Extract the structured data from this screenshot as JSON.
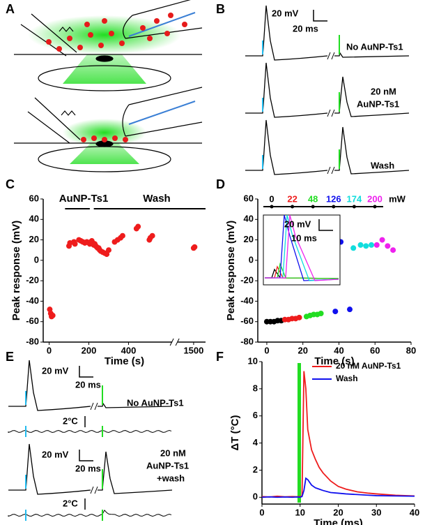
{
  "labels": {
    "A": "A",
    "B": "B",
    "C": "C",
    "D": "D",
    "E": "E",
    "F": "F"
  },
  "panel_b": {
    "scale_v": "20 mV",
    "scale_h": "20 ms",
    "row1": "No AuNP-Ts1",
    "row2a": "20 nM",
    "row2b": "AuNP-Ts1",
    "row3": "Wash"
  },
  "panel_e": {
    "scale_v1": "20 mV",
    "scale_h1": "20 ms",
    "row1": "No AuNP-Ts1",
    "temp1": "2°C",
    "scale_v2": "20 mV",
    "scale_h2": "20 ms",
    "row2a": "20 nM",
    "row2b": "AuNP-Ts1",
    "row2c": "+wash",
    "temp2": "2°C"
  },
  "chart_data": [
    {
      "type": "scatter",
      "xlabel": "Time (s)",
      "ylabel": "Peak response (mV)",
      "annotations": [
        "AuNP-Ts1",
        "Wash"
      ],
      "color": "#ee1c1c",
      "x": [
        3,
        8,
        12,
        18,
        100,
        105,
        125,
        130,
        150,
        160,
        170,
        180,
        190,
        200,
        205,
        210,
        215,
        220,
        225,
        230,
        235,
        240,
        245,
        250,
        255,
        260,
        270,
        280,
        290,
        300,
        330,
        345,
        360,
        370,
        440,
        448,
        505,
        510,
        520,
        1500,
        1505
      ],
      "values": [
        -48,
        -52,
        -55,
        -54,
        14,
        17,
        18,
        16,
        20,
        19,
        18,
        17,
        18,
        17,
        16,
        18,
        19,
        17,
        15,
        16,
        14,
        13,
        12,
        12,
        10,
        9,
        8,
        7,
        6,
        10,
        18,
        20,
        22,
        24,
        31,
        33,
        20,
        22,
        24,
        12,
        13
      ],
      "xlim": [
        -30,
        1560
      ],
      "xbreak": [
        620,
        1420
      ],
      "xticks": [
        0,
        200,
        400,
        1500
      ],
      "ylim": [
        -80,
        60
      ],
      "yticks": [
        -80,
        -60,
        -40,
        -20,
        0,
        20,
        40,
        60
      ]
    },
    {
      "type": "scatter",
      "xlabel": "Time (s)",
      "ylabel": "Peak response (mV)",
      "unit_label": "mW",
      "inset_scale_v": "20 mV",
      "inset_scale_h": "10 ms",
      "series": [
        {
          "name": "0",
          "color": "#000000",
          "x": [
            0,
            2,
            4,
            6,
            8
          ],
          "values": [
            -60,
            -60,
            -60,
            -59,
            -59
          ]
        },
        {
          "name": "22",
          "color": "#ee1c1c",
          "x": [
            10,
            12,
            14,
            16,
            18
          ],
          "values": [
            -58,
            -58,
            -57,
            -57,
            -56
          ]
        },
        {
          "name": "48",
          "color": "#22dd22",
          "x": [
            22,
            24,
            26,
            28,
            30
          ],
          "values": [
            -55,
            -54,
            -53,
            -53,
            -52
          ]
        },
        {
          "name": "126",
          "color": "#1010ee",
          "x": [
            38,
            41,
            46
          ],
          "values": [
            -50,
            18,
            -48
          ]
        },
        {
          "name": "174",
          "color": "#11dddd",
          "x": [
            48,
            52,
            55,
            58
          ],
          "values": [
            12,
            15,
            14,
            15
          ]
        },
        {
          "name": "200",
          "color": "#ee22ee",
          "x": [
            61,
            64,
            67,
            70
          ],
          "values": [
            15,
            20,
            14,
            10
          ]
        }
      ],
      "xlim": [
        -5,
        80
      ],
      "xticks": [
        0,
        20,
        40,
        60,
        80
      ],
      "ylim": [
        -80,
        60
      ],
      "yticks": [
        -80,
        -60,
        -40,
        -20,
        0,
        20,
        40,
        60
      ]
    },
    {
      "type": "line",
      "xlabel": "Time (ms)",
      "ylabel": "ΔT (°C)",
      "legend": "upper right",
      "x": [
        0,
        2,
        4,
        6,
        8,
        9,
        10,
        10.5,
        11,
        11.5,
        12,
        13,
        14,
        15,
        16,
        18,
        20,
        22,
        25,
        28,
        30,
        35,
        40
      ],
      "series": [
        {
          "name": "20 nM AuNP-Ts1",
          "color": "#ee1c1c",
          "values": [
            0.05,
            0.02,
            0.08,
            0.03,
            0.05,
            0.04,
            0.05,
            0.1,
            9.3,
            8,
            5,
            3.5,
            2.8,
            2.2,
            1.8,
            1.2,
            0.8,
            0.6,
            0.4,
            0.3,
            0.25,
            0.15,
            0.1
          ]
        },
        {
          "name": "Wash",
          "color": "#1010ee",
          "values": [
            0,
            0.03,
            0,
            0.02,
            0,
            0.02,
            0.01,
            0.05,
            0.5,
            1.4,
            1.3,
            0.9,
            0.7,
            0.6,
            0.5,
            0.35,
            0.3,
            0.25,
            0.2,
            0.15,
            0.12,
            0.1,
            0.08
          ]
        }
      ],
      "xlim": [
        0,
        40
      ],
      "xticks": [
        0,
        10,
        20,
        30,
        40
      ],
      "ylim": [
        -0.5,
        10
      ],
      "yticks": [
        0,
        2,
        4,
        6,
        8,
        10
      ]
    }
  ]
}
